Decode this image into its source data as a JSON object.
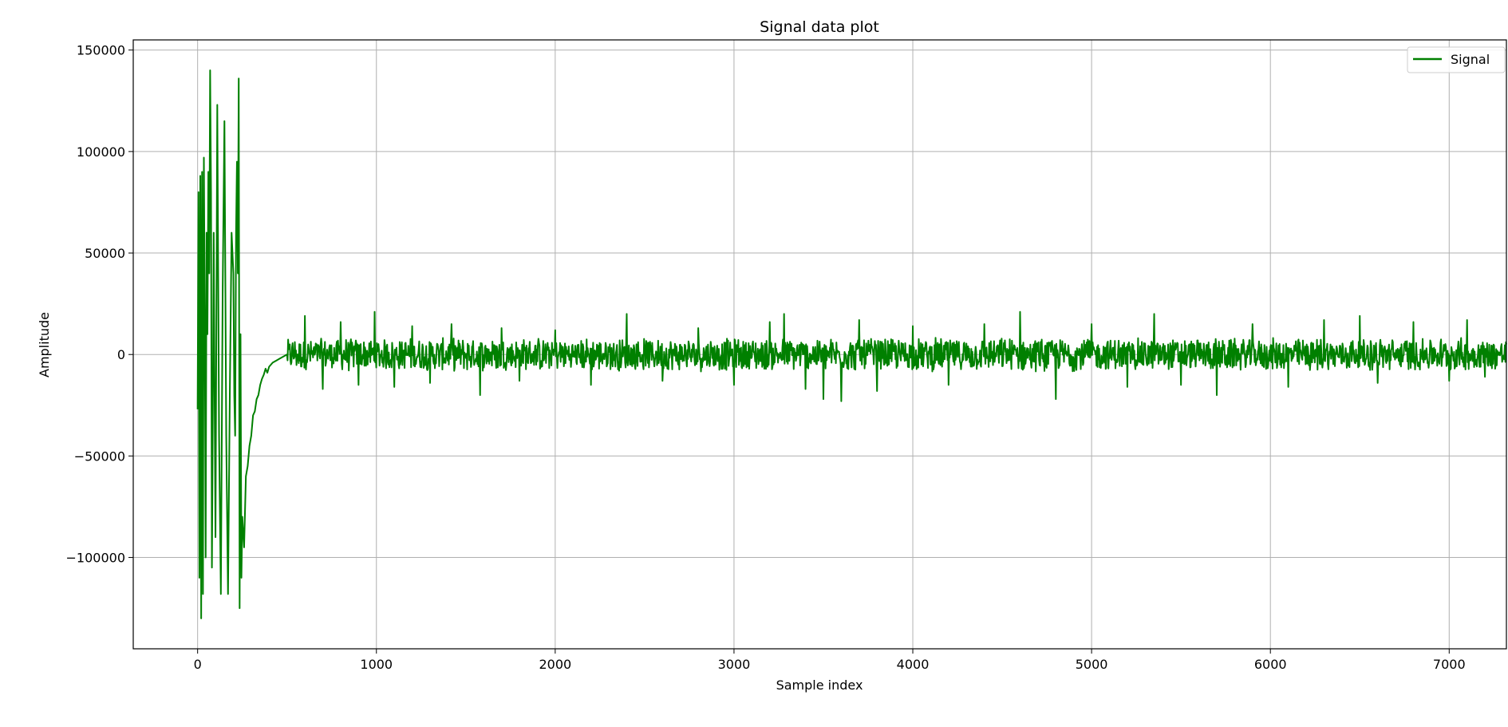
{
  "chart_data": {
    "type": "line",
    "title": "Signal data plot",
    "xlabel": "Sample index",
    "ylabel": "Amplitude",
    "xlim": [
      -360,
      7320
    ],
    "ylim": [
      -145000,
      155000
    ],
    "x_ticks": [
      0,
      1000,
      2000,
      3000,
      4000,
      5000,
      6000,
      7000
    ],
    "x_tick_labels": [
      "0",
      "1000",
      "2000",
      "3000",
      "4000",
      "5000",
      "6000",
      "7000"
    ],
    "y_ticks": [
      -100000,
      -50000,
      0,
      50000,
      100000,
      150000
    ],
    "y_tick_labels": [
      "−100000",
      "−50000",
      "0",
      "50000",
      "100000",
      "150000"
    ],
    "grid": true,
    "legend_position": "top-right",
    "series": [
      {
        "name": "Signal",
        "color": "#008000",
        "samples": 7320,
        "points": [
          [
            0,
            -27000
          ],
          [
            5,
            80000
          ],
          [
            10,
            -110000
          ],
          [
            15,
            88000
          ],
          [
            20,
            -130000
          ],
          [
            25,
            90000
          ],
          [
            30,
            -118000
          ],
          [
            35,
            97000
          ],
          [
            40,
            20000
          ],
          [
            45,
            -100000
          ],
          [
            50,
            60000
          ],
          [
            55,
            10000
          ],
          [
            60,
            90000
          ],
          [
            65,
            40000
          ],
          [
            70,
            140000
          ],
          [
            75,
            80000
          ],
          [
            80,
            -105000
          ],
          [
            85,
            -30000
          ],
          [
            90,
            60000
          ],
          [
            95,
            -20000
          ],
          [
            100,
            -90000
          ],
          [
            110,
            123000
          ],
          [
            120,
            -40000
          ],
          [
            130,
            -118000
          ],
          [
            140,
            30000
          ],
          [
            150,
            115000
          ],
          [
            160,
            -40000
          ],
          [
            170,
            -118000
          ],
          [
            180,
            -20000
          ],
          [
            190,
            60000
          ],
          [
            200,
            40000
          ],
          [
            205,
            -20000
          ],
          [
            210,
            -40000
          ],
          [
            215,
            60000
          ],
          [
            220,
            95000
          ],
          [
            225,
            40000
          ],
          [
            230,
            136000
          ],
          [
            235,
            -125000
          ],
          [
            240,
            10000
          ],
          [
            245,
            -110000
          ],
          [
            250,
            -80000
          ],
          [
            260,
            -95000
          ],
          [
            270,
            -60000
          ],
          [
            280,
            -55000
          ],
          [
            290,
            -45000
          ],
          [
            300,
            -40000
          ],
          [
            310,
            -30000
          ],
          [
            320,
            -28000
          ],
          [
            330,
            -22000
          ],
          [
            340,
            -20000
          ],
          [
            350,
            -15000
          ],
          [
            360,
            -12000
          ],
          [
            370,
            -10000
          ],
          [
            380,
            -7000
          ],
          [
            390,
            -9000
          ],
          [
            400,
            -6000
          ],
          [
            420,
            -4000
          ],
          [
            440,
            -3000
          ],
          [
            460,
            -2000
          ],
          [
            480,
            -1000
          ],
          [
            500,
            0
          ],
          [
            550,
            2000
          ],
          [
            600,
            19000
          ],
          [
            700,
            -17000
          ],
          [
            800,
            16000
          ],
          [
            900,
            -15000
          ],
          [
            990,
            21000
          ],
          [
            1100,
            -16000
          ],
          [
            1200,
            14000
          ],
          [
            1300,
            -14000
          ],
          [
            1420,
            15000
          ],
          [
            1580,
            -20000
          ],
          [
            1700,
            13000
          ],
          [
            1800,
            -13000
          ],
          [
            2000,
            12000
          ],
          [
            2200,
            -15000
          ],
          [
            2400,
            20000
          ],
          [
            2600,
            -13000
          ],
          [
            2800,
            13000
          ],
          [
            3000,
            -15000
          ],
          [
            3200,
            16000
          ],
          [
            3280,
            20000
          ],
          [
            3400,
            -17000
          ],
          [
            3500,
            -22000
          ],
          [
            3600,
            -23000
          ],
          [
            3700,
            17000
          ],
          [
            3800,
            -18000
          ],
          [
            4000,
            14000
          ],
          [
            4200,
            -15000
          ],
          [
            4400,
            15000
          ],
          [
            4600,
            21000
          ],
          [
            4800,
            -22000
          ],
          [
            5000,
            15000
          ],
          [
            5200,
            -16000
          ],
          [
            5350,
            20000
          ],
          [
            5500,
            -15000
          ],
          [
            5700,
            -20000
          ],
          [
            5900,
            15000
          ],
          [
            6100,
            -16000
          ],
          [
            6300,
            17000
          ],
          [
            6500,
            19000
          ],
          [
            6600,
            -14000
          ],
          [
            6800,
            16000
          ],
          [
            7000,
            -13000
          ],
          [
            7100,
            17000
          ],
          [
            7200,
            -11000
          ],
          [
            7320,
            5000
          ]
        ]
      }
    ]
  }
}
